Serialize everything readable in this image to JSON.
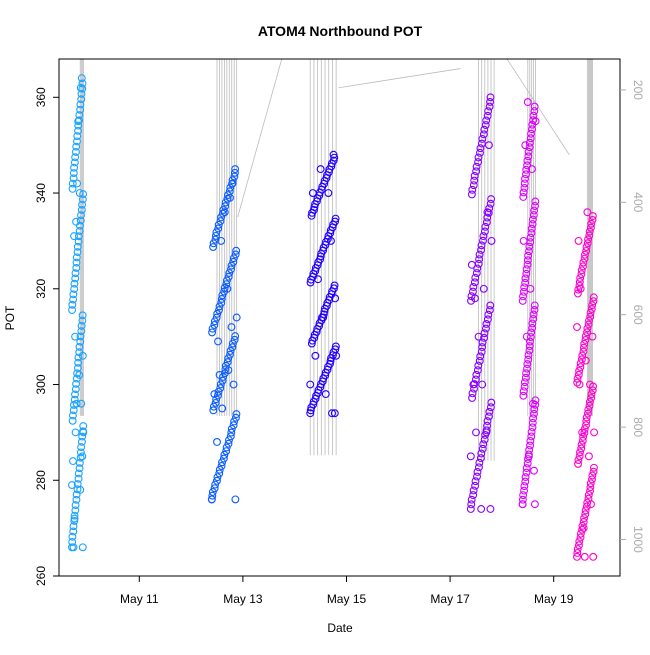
{
  "chart_data": {
    "type": "scatter",
    "title": "ATOM4 Northbound POT",
    "xlabel": "Date",
    "ylabel": "POT",
    "x_ticks": [
      "May 11",
      "May 13",
      "May 15",
      "May 17",
      "May 19"
    ],
    "xlim": [
      9.45,
      20.28
    ],
    "ylim": [
      260,
      368
    ],
    "y_ticks": [
      260,
      280,
      300,
      320,
      340,
      360
    ],
    "y2lim": [
      1065,
      145
    ],
    "y2_ticks": [
      200,
      400,
      600,
      800,
      1000
    ],
    "y2_reversed": true,
    "grid": false,
    "legend": "none",
    "series": [
      {
        "color": "#1aa3ff",
        "points": [
          [
            9.7,
            279
          ],
          [
            9.72,
            284
          ],
          [
            9.73,
            266
          ],
          [
            9.74,
            331
          ],
          [
            9.75,
            272
          ],
          [
            9.76,
            310
          ],
          [
            9.77,
            290
          ],
          [
            9.78,
            334
          ],
          [
            9.79,
            296
          ],
          [
            9.8,
            342
          ],
          [
            9.82,
            355
          ],
          [
            9.84,
            302
          ],
          [
            9.85,
            340
          ],
          [
            9.86,
            278
          ],
          [
            9.87,
            362
          ],
          [
            9.88,
            296
          ],
          [
            9.89,
            364
          ],
          [
            9.9,
            285
          ],
          [
            9.91,
            306
          ],
          [
            9.92,
            290
          ]
        ]
      },
      {
        "color": "#0a5cff",
        "points": [
          [
            12.4,
            276
          ],
          [
            12.45,
            298
          ],
          [
            12.5,
            288
          ],
          [
            12.52,
            309
          ],
          [
            12.55,
            302
          ],
          [
            12.58,
            330
          ],
          [
            12.6,
            295
          ],
          [
            12.65,
            336
          ],
          [
            12.7,
            320
          ],
          [
            12.72,
            303
          ],
          [
            12.75,
            339
          ],
          [
            12.78,
            312
          ],
          [
            12.8,
            342
          ],
          [
            12.82,
            300
          ],
          [
            12.85,
            345
          ],
          [
            12.88,
            314
          ]
        ]
      },
      {
        "color": "#2200ff",
        "points": [
          [
            14.3,
            300
          ],
          [
            14.35,
            340
          ],
          [
            14.4,
            306
          ],
          [
            14.45,
            322
          ],
          [
            14.5,
            345
          ],
          [
            14.55,
            314
          ],
          [
            14.6,
            298
          ],
          [
            14.65,
            340
          ],
          [
            14.7,
            330
          ],
          [
            14.72,
            294
          ],
          [
            14.75,
            348
          ],
          [
            14.78,
            318
          ],
          [
            14.8,
            306
          ]
        ]
      },
      {
        "color": "#8800ff",
        "points": [
          [
            17.4,
            285
          ],
          [
            17.42,
            325
          ],
          [
            17.45,
            300
          ],
          [
            17.48,
            318
          ],
          [
            17.5,
            290
          ],
          [
            17.55,
            310
          ],
          [
            17.6,
            274
          ],
          [
            17.62,
            300
          ],
          [
            17.65,
            320
          ],
          [
            17.7,
            290
          ],
          [
            17.72,
            336
          ],
          [
            17.75,
            350
          ],
          [
            17.78,
            360
          ],
          [
            17.8,
            330
          ]
        ]
      },
      {
        "color": "#dd00ff",
        "points": [
          [
            18.4,
            275
          ],
          [
            18.42,
            330
          ],
          [
            18.45,
            350
          ],
          [
            18.48,
            310
          ],
          [
            18.5,
            359
          ],
          [
            18.52,
            285
          ],
          [
            18.55,
            320
          ],
          [
            18.58,
            345
          ],
          [
            18.6,
            296
          ],
          [
            18.62,
            282
          ],
          [
            18.65,
            355
          ]
        ]
      },
      {
        "color": "#ff00cc",
        "points": [
          [
            19.45,
            312
          ],
          [
            19.48,
            330
          ],
          [
            19.5,
            300
          ],
          [
            19.52,
            320
          ],
          [
            19.55,
            290
          ],
          [
            19.58,
            270
          ],
          [
            19.6,
            264
          ],
          [
            19.62,
            305
          ],
          [
            19.65,
            336
          ],
          [
            19.68,
            285
          ],
          [
            19.7,
            300
          ],
          [
            19.72,
            275
          ],
          [
            19.75,
            310
          ],
          [
            19.78,
            290
          ]
        ]
      }
    ],
    "secondary_lines_color": "#bbbbbb"
  }
}
